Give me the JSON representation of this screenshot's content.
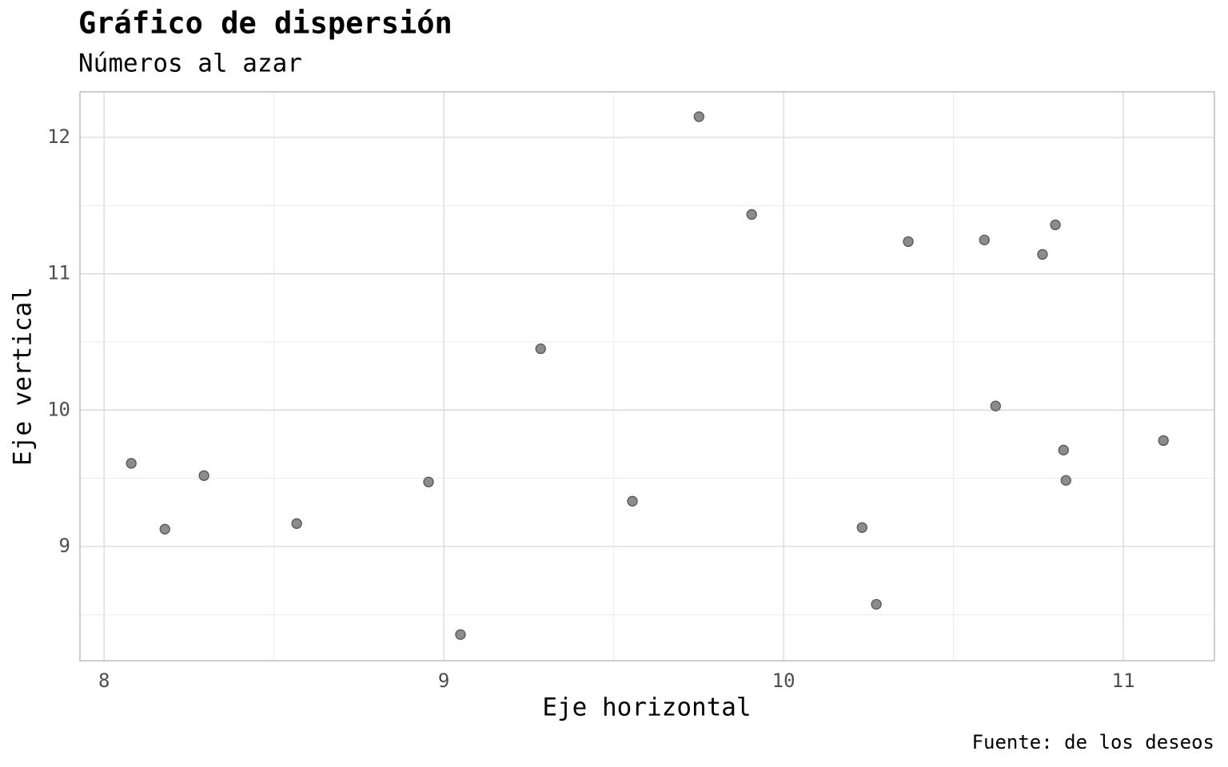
{
  "chart_data": {
    "type": "scatter",
    "title": "Gráfico de dispersión",
    "subtitle": "Números al azar",
    "x_label": "Eje horizontal",
    "y_label": "Eje vertical",
    "caption": "Fuente: de los deseos",
    "x": [
      8.08,
      8.179,
      8.294,
      8.567,
      8.955,
      9.049,
      9.285,
      9.555,
      9.751,
      9.906,
      10.231,
      10.273,
      10.367,
      10.591,
      10.624,
      10.762,
      10.8,
      10.824,
      10.831,
      11.118
    ],
    "values": [
      9.61,
      9.127,
      9.52,
      9.168,
      9.473,
      8.354,
      10.45,
      9.332,
      12.152,
      11.435,
      9.139,
      8.576,
      11.236,
      11.248,
      10.03,
      11.142,
      11.359,
      9.707,
      9.485,
      9.777
    ],
    "color": "#8c8c8c",
    "xlim": [
      7.929,
      11.268
    ],
    "ylim": [
      8.162,
      12.334
    ],
    "xticks": [
      8,
      9,
      10,
      11
    ],
    "yticks": [
      9,
      10,
      11,
      12
    ],
    "x_minor_grid": [
      8.5,
      9.5,
      10.5
    ],
    "y_minor_grid": [
      8.5,
      9.5,
      10.5,
      11.5
    ],
    "grid": true
  }
}
